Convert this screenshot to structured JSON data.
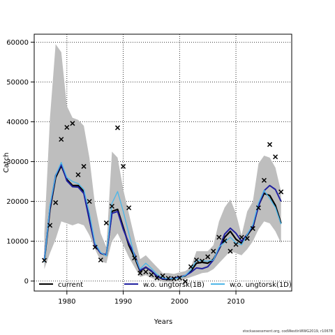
{
  "chart_data": {
    "type": "line",
    "ylabel": "Catch",
    "xlabel": "Years",
    "xlim": [
      1974.2,
      2019.9
    ],
    "ylim": [
      -2500,
      62000
    ],
    "x_ticks": [
      1980,
      1990,
      2000,
      2010
    ],
    "y_ticks": [
      0,
      10000,
      20000,
      30000,
      40000,
      50000,
      60000
    ],
    "grid": true,
    "legend_position": "bottom",
    "band": {
      "color": "#bebebe",
      "x": [
        1976,
        1977,
        1978,
        1979,
        1980,
        1981,
        1982,
        1983,
        1984,
        1985,
        1986,
        1987,
        1988,
        1989,
        1990,
        1991,
        1992,
        1993,
        1994,
        1995,
        1996,
        1997,
        1998,
        1999,
        2000,
        2001,
        2002,
        2003,
        2004,
        2005,
        2006,
        2007,
        2008,
        2009,
        2010,
        2011,
        2012,
        2013,
        2014,
        2015,
        2016,
        2017,
        2018
      ],
      "lower": [
        3000,
        7000,
        10500,
        15000,
        14500,
        14000,
        14500,
        14000,
        11500,
        8000,
        5000,
        4500,
        10000,
        12000,
        9000,
        6000,
        3500,
        1000,
        1500,
        800,
        300,
        -200,
        -300,
        -200,
        0,
        500,
        1000,
        1500,
        2000,
        2200,
        3000,
        4500,
        6000,
        7500,
        7000,
        6500,
        8000,
        10000,
        13000,
        15000,
        14500,
        12500,
        9500
      ],
      "upper": [
        12000,
        41000,
        59500,
        57500,
        44000,
        41000,
        40500,
        39000,
        31000,
        19000,
        12000,
        8500,
        32500,
        31000,
        23000,
        17000,
        11000,
        5500,
        6500,
        5000,
        3500,
        2000,
        2000,
        1800,
        2200,
        2500,
        3500,
        7500,
        7500,
        7500,
        9000,
        15000,
        18500,
        20500,
        17000,
        11500,
        17500,
        20000,
        29500,
        31500,
        31000,
        28500,
        22500
      ]
    },
    "series": [
      {
        "name": "current",
        "color": "#000000",
        "x": [
          1976,
          1977,
          1978,
          1979,
          1980,
          1981,
          1982,
          1983,
          1984,
          1985,
          1986,
          1987,
          1988,
          1989,
          1990,
          1991,
          1992,
          1993,
          1994,
          1995,
          1996,
          1997,
          1998,
          1999,
          2000,
          2001,
          2002,
          2003,
          2004,
          2005,
          2006,
          2007,
          2008,
          2009,
          2010,
          2011,
          2012,
          2013,
          2014,
          2015,
          2016,
          2017,
          2018
        ],
        "values": [
          5000,
          18000,
          26000,
          29000,
          25500,
          24000,
          24000,
          22500,
          15500,
          9000,
          7000,
          6500,
          17500,
          18000,
          13500,
          9000,
          6000,
          2500,
          3500,
          2500,
          1200,
          500,
          400,
          700,
          1000,
          1300,
          2500,
          4500,
          4700,
          4500,
          5500,
          8000,
          11000,
          12500,
          10500,
          9500,
          11500,
          13500,
          19000,
          22000,
          21500,
          19000,
          14500
        ]
      },
      {
        "name": "w.o. ungtorsk(1B)",
        "color": "#2020a0",
        "x": [
          1976,
          1977,
          1978,
          1979,
          1980,
          1981,
          1982,
          1983,
          1984,
          1985,
          1986,
          1987,
          1988,
          1989,
          1990,
          1991,
          1992,
          1993,
          1994,
          1995,
          1996,
          1997,
          1998,
          1999,
          2000,
          2001,
          2002,
          2003,
          2004,
          2005,
          2006,
          2007,
          2008,
          2009,
          2010,
          2011,
          2012,
          2013,
          2014,
          2015,
          2016,
          2017,
          2018
        ],
        "values": [
          5200,
          18500,
          26500,
          29300,
          25200,
          23700,
          23600,
          22000,
          15300,
          9000,
          7000,
          6600,
          17000,
          17500,
          13000,
          9500,
          6700,
          2700,
          3500,
          2600,
          1200,
          600,
          500,
          800,
          1000,
          1400,
          2200,
          3300,
          3100,
          3600,
          5300,
          8000,
          11800,
          13300,
          12000,
          10000,
          11700,
          13800,
          18700,
          22700,
          24000,
          23000,
          20000
        ]
      },
      {
        "name": "w.o. ungtorsk(1D)",
        "color": "#4fb7e8",
        "x": [
          1976,
          1977,
          1978,
          1979,
          1980,
          1981,
          1982,
          1983,
          1984,
          1985,
          1986,
          1987,
          1988,
          1989,
          1990,
          1991,
          1992,
          1993,
          1994,
          1995,
          1996,
          1997,
          1998,
          1999,
          2000,
          2001,
          2002,
          2003,
          2004,
          2005,
          2006,
          2007,
          2008,
          2009,
          2010,
          2011,
          2012,
          2013,
          2014,
          2015,
          2016,
          2017,
          2018
        ],
        "values": [
          4800,
          19000,
          26500,
          29800,
          26000,
          25000,
          24500,
          23000,
          17000,
          9500,
          7200,
          6300,
          19500,
          22500,
          17500,
          12000,
          6300,
          3000,
          4500,
          3200,
          1700,
          800,
          600,
          600,
          800,
          1400,
          2800,
          5200,
          5100,
          5000,
          5300,
          8500,
          9800,
          11000,
          9600,
          9100,
          11700,
          14200,
          19600,
          22800,
          20700,
          18500,
          14300
        ]
      }
    ],
    "points": {
      "marker": "x",
      "color": "#000000",
      "x": [
        1976,
        1977,
        1978,
        1979,
        1980,
        1981,
        1982,
        1983,
        1984,
        1985,
        1986,
        1987,
        1988,
        1989,
        1990,
        1991,
        1992,
        1993,
        1994,
        1995,
        1996,
        1997,
        1998,
        1999,
        2000,
        2001,
        2002,
        2003,
        2004,
        2005,
        2006,
        2007,
        2008,
        2009,
        2010,
        2011,
        2012,
        2013,
        2014,
        2015,
        2016,
        2017,
        2018
      ],
      "y": [
        5200,
        14000,
        19700,
        35600,
        38600,
        39600,
        26700,
        28800,
        20000,
        8500,
        5300,
        14600,
        18800,
        38500,
        28800,
        18400,
        5800,
        2000,
        2300,
        1600,
        800,
        1300,
        700,
        600,
        800,
        -100,
        3600,
        5300,
        5000,
        6100,
        7500,
        11000,
        10100,
        7500,
        9200,
        11000,
        10700,
        13200,
        18400,
        25300,
        34300,
        31200,
        22400
      ]
    }
  },
  "footer_text": "stockassessment.org, codWestInWWG2019, r10678"
}
